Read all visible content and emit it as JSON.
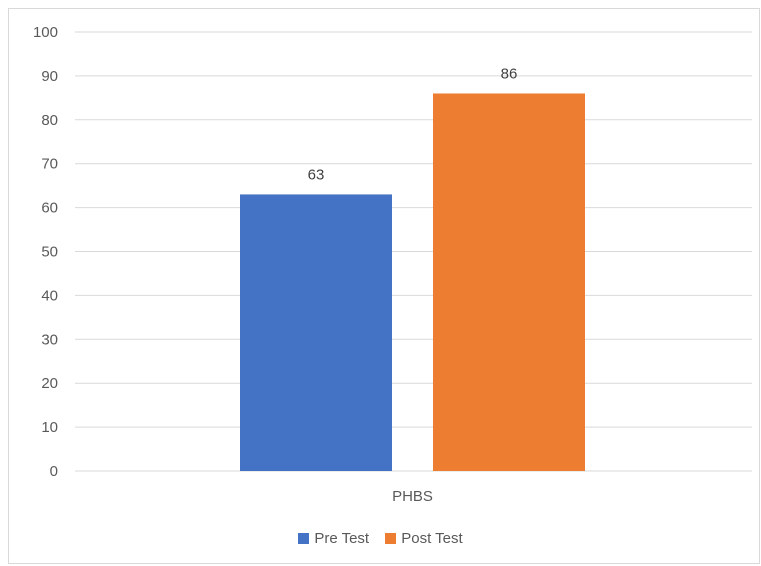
{
  "chart_data": {
    "type": "bar",
    "categories": [
      "PHBS"
    ],
    "series": [
      {
        "name": "Pre Test",
        "values": [
          63
        ],
        "color": "#4472C4"
      },
      {
        "name": "Post Test",
        "values": [
          86
        ],
        "color": "#ED7D31"
      }
    ],
    "ylim": [
      0,
      100
    ],
    "yticks": [
      "0",
      "10",
      "20",
      "30",
      "40",
      "50",
      "60",
      "70",
      "80",
      "90",
      "100"
    ],
    "grid": true,
    "legend_position": "bottom",
    "data_labels": [
      "63",
      "86"
    ]
  }
}
